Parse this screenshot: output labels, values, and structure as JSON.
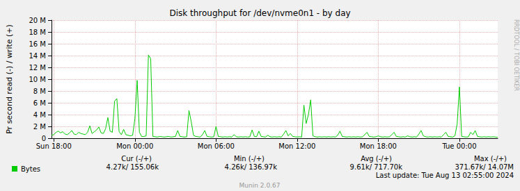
{
  "chart_data": {
    "type": "line",
    "title": "Disk throughput for /dev/nvme0n1 - by day",
    "y_label": "Pr second read (-) / write (+)",
    "categories": [
      null,
      "Sun 18:00",
      null,
      null,
      null,
      null,
      null,
      null,
      null,
      null,
      null,
      null,
      null,
      null,
      null,
      null,
      null,
      null,
      null,
      null,
      null,
      null,
      null,
      null,
      null,
      null,
      null,
      null,
      null,
      null,
      null,
      null,
      null,
      null,
      null,
      null,
      null,
      "Mon 00:00",
      null,
      null,
      null,
      null,
      null,
      null,
      null,
      null,
      null,
      null,
      null,
      null,
      null,
      null,
      null,
      null,
      null,
      null,
      null,
      null,
      null,
      null,
      null,
      null,
      null,
      null,
      null,
      null,
      null,
      null,
      null,
      null,
      null,
      null,
      null,
      "Mon 06:00",
      null,
      null,
      null,
      null,
      null,
      null,
      null,
      null,
      null,
      null,
      null,
      null,
      null,
      null,
      null,
      null,
      null,
      null,
      null,
      null,
      null,
      null,
      null,
      null,
      null,
      null,
      null,
      null,
      null,
      null,
      null,
      null,
      null,
      null,
      null,
      "Mon 12:00",
      null,
      null,
      null,
      null,
      null,
      null,
      null,
      null,
      null,
      null,
      null,
      null,
      null,
      null,
      null,
      null,
      null,
      null,
      null,
      null,
      null,
      null,
      null,
      null,
      null,
      null,
      null,
      null,
      null,
      null,
      null,
      null,
      null,
      null,
      null,
      "Mon 18:00",
      null,
      null,
      null,
      null,
      null,
      null,
      null,
      null,
      null,
      null,
      null,
      null,
      null,
      null,
      null,
      null,
      null,
      null,
      null,
      null,
      null,
      null,
      null,
      null,
      null,
      null,
      null,
      null,
      null,
      null,
      null,
      null,
      null,
      null,
      null,
      "Tue 00:00",
      null,
      null,
      null,
      null,
      null,
      null,
      null,
      null,
      null,
      null,
      null,
      null,
      null,
      null,
      null,
      null,
      null
    ],
    "series": [
      {
        "name": "Bytes",
        "color": "#00cc00",
        "values": [
          500000,
          600000,
          1000000,
          1200000,
          900000,
          1100000,
          700000,
          600000,
          900000,
          1300000,
          700000,
          600000,
          1000000,
          800000,
          700000,
          600000,
          1000000,
          2100000,
          800000,
          1100000,
          1400000,
          1900000,
          900000,
          800000,
          1600000,
          3500000,
          1200000,
          1000000,
          6300000,
          6700000,
          1100000,
          600000,
          1500000,
          600000,
          500000,
          400000,
          500000,
          3300000,
          9800000,
          1000000,
          300000,
          300000,
          400000,
          14070000,
          13500000,
          300000,
          250000,
          200000,
          300000,
          250000,
          200000,
          250000,
          300000,
          200000,
          250000,
          300000,
          1300000,
          300000,
          250000,
          200000,
          250000,
          4700000,
          2800000,
          500000,
          300000,
          250000,
          200000,
          600000,
          1300000,
          300000,
          250000,
          200000,
          250000,
          2000000,
          300000,
          250000,
          200000,
          250000,
          200000,
          250000,
          200000,
          600000,
          250000,
          200000,
          250000,
          200000,
          250000,
          200000,
          250000,
          1400000,
          300000,
          250000,
          1200000,
          300000,
          250000,
          200000,
          500000,
          250000,
          200000,
          250000,
          200000,
          250000,
          200000,
          700000,
          1300000,
          400000,
          800000,
          300000,
          250000,
          200000,
          250000,
          200000,
          5600000,
          2500000,
          4000000,
          6500000,
          400000,
          250000,
          200000,
          250000,
          200000,
          250000,
          200000,
          250000,
          200000,
          250000,
          200000,
          500000,
          1200000,
          300000,
          250000,
          200000,
          250000,
          200000,
          250000,
          200000,
          250000,
          200000,
          250000,
          600000,
          1000000,
          300000,
          250000,
          200000,
          250000,
          400000,
          250000,
          200000,
          250000,
          200000,
          250000,
          600000,
          1000000,
          300000,
          250000,
          200000,
          250000,
          200000,
          400000,
          250000,
          200000,
          250000,
          200000,
          700000,
          1300000,
          400000,
          250000,
          200000,
          250000,
          200000,
          250000,
          200000,
          250000,
          200000,
          600000,
          1000000,
          300000,
          250000,
          200000,
          400000,
          2400000,
          8700000,
          300000,
          250000,
          200000,
          250000,
          1000000,
          600000,
          1300000,
          300000,
          250000,
          200000,
          250000,
          200000,
          250000,
          200000,
          250000,
          200000,
          155060
        ]
      }
    ],
    "ylim": [
      0,
      20000000
    ],
    "yticks": [
      0,
      {
        "value": 2000000,
        "label": "2 M"
      },
      {
        "value": 4000000,
        "label": "4 M"
      },
      {
        "value": 6000000,
        "label": "6 M"
      },
      {
        "value": 8000000,
        "label": "8 M"
      },
      {
        "value": 10000000,
        "label": "10 M"
      },
      {
        "value": 12000000,
        "label": "12 M"
      },
      {
        "value": 14000000,
        "label": "14 M"
      },
      {
        "value": 16000000,
        "label": "16 M"
      },
      {
        "value": 18000000,
        "label": "18 M"
      },
      {
        "value": 20000000,
        "label": "20 M"
      }
    ],
    "grid": true,
    "legend": "bottom-left",
    "stats_headers": [
      "Cur (-/+)",
      "Min (-/+)",
      "Avg (-/+)",
      "Max (-/+)"
    ],
    "stats": [
      "4.27k/ 155.06k",
      "4.26k/ 136.97k",
      "9.61k/ 717.70k",
      "371.67k/ 14.07M"
    ],
    "footer": "Last update: Tue Aug 13 02:55:00 2024",
    "credit": "Munin 2.0.67",
    "side_text": "RRDTOOL / TOBI OETIKER"
  }
}
